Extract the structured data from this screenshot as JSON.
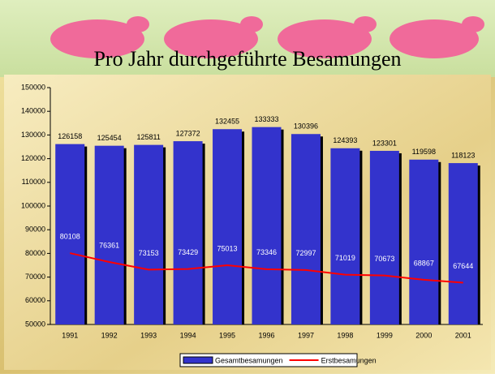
{
  "chart_data": {
    "type": "bar",
    "title": "Pro Jahr durchgeführte Besamungen",
    "categories": [
      "1991",
      "1992",
      "1993",
      "1994",
      "1995",
      "1996",
      "1997",
      "1998",
      "1999",
      "2000",
      "2001"
    ],
    "series": [
      {
        "name": "Gesamtbesamungen",
        "type": "bar",
        "color": "#3333cc",
        "values": [
          126158,
          125454,
          125811,
          127372,
          132455,
          133333,
          130396,
          124393,
          123301,
          119598,
          118123
        ]
      },
      {
        "name": "Erstbesamungen",
        "type": "line",
        "color": "#ff0000",
        "values": [
          80108,
          76361,
          73153,
          73429,
          75013,
          73346,
          72997,
          71019,
          70673,
          68867,
          67644
        ]
      }
    ],
    "ylim": [
      50000,
      150000
    ],
    "yticks": [
      50000,
      60000,
      70000,
      80000,
      90000,
      100000,
      110000,
      120000,
      130000,
      140000,
      150000
    ]
  }
}
